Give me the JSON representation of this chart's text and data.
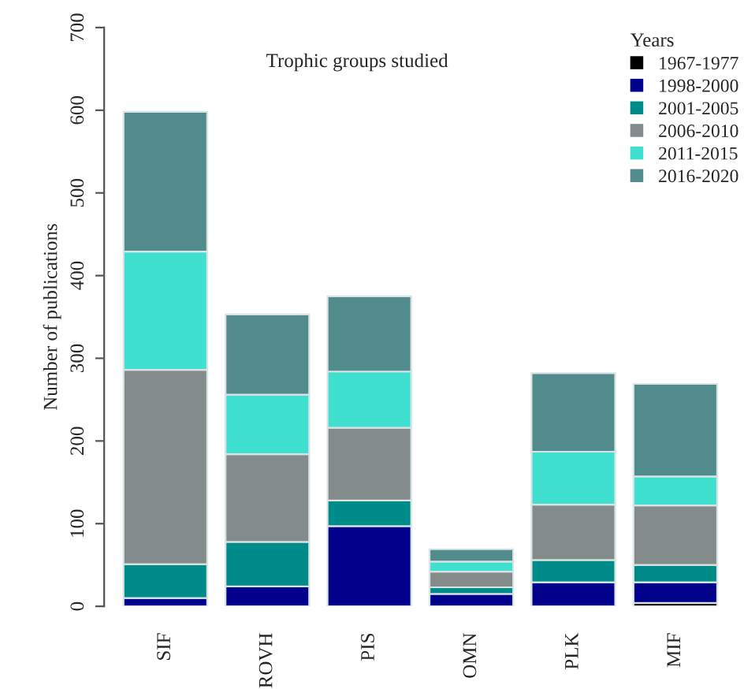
{
  "chart_data": {
    "type": "bar",
    "stacked": true,
    "title": "Trophic groups studied",
    "ylabel": "Number of publications",
    "legend_title": "Years",
    "legend": "top right",
    "categories": [
      "SIF",
      "ROVH",
      "PIS",
      "OMN",
      "PLK",
      "MIF"
    ],
    "ylim": [
      0,
      700
    ],
    "yticks": [
      0,
      100,
      200,
      300,
      400,
      500,
      600,
      700
    ],
    "series": [
      {
        "name": "1967-1977",
        "color": "#000000",
        "values": [
          0,
          0,
          0,
          0,
          0,
          4
        ]
      },
      {
        "name": "1998-2000",
        "color": "#00008b",
        "values": [
          10,
          24,
          97,
          15,
          29,
          25
        ]
      },
      {
        "name": "2001-2005",
        "color": "#008b8b",
        "values": [
          41,
          54,
          31,
          8,
          27,
          21
        ]
      },
      {
        "name": "2006-2010",
        "color": "#838b8b",
        "values": [
          235,
          106,
          88,
          19,
          67,
          72
        ]
      },
      {
        "name": "2011-2015",
        "color": "#40e0d0",
        "values": [
          143,
          72,
          68,
          12,
          64,
          35
        ]
      },
      {
        "name": "2016-2020",
        "color": "#528b8b",
        "values": [
          169,
          97,
          91,
          15,
          95,
          112
        ]
      }
    ]
  }
}
